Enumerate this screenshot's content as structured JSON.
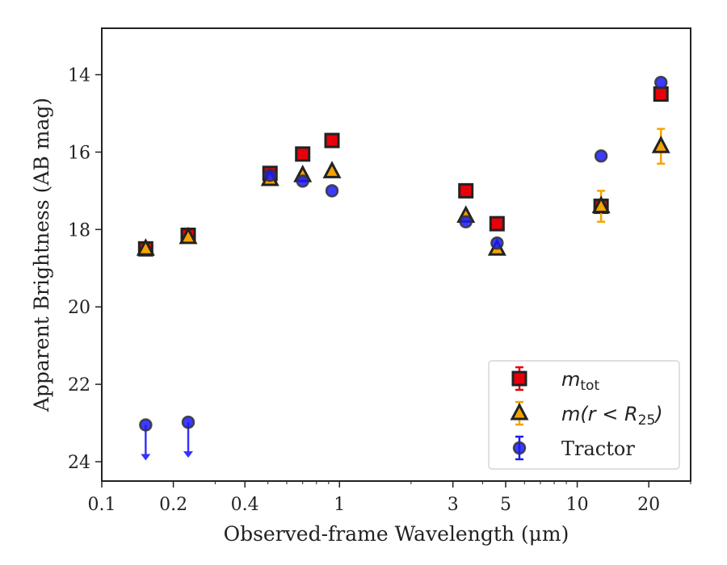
{
  "chart_data": {
    "type": "scatter",
    "xlabel": "Observed-frame Wavelength (μm)",
    "ylabel": "Apparent Brightness (AB mag)",
    "xscale": "log",
    "xlim": [
      0.1,
      30
    ],
    "ylim": [
      24.5,
      12.8
    ],
    "y_inverted": true,
    "xticks": [
      0.1,
      0.2,
      0.4,
      1,
      3,
      5,
      10,
      20
    ],
    "xtick_labels": [
      "0.1",
      "0.2",
      "0.4",
      "1",
      "3",
      "5",
      "10",
      "20"
    ],
    "yticks": [
      14,
      16,
      18,
      20,
      22,
      24
    ],
    "ytick_labels": [
      "14",
      "16",
      "18",
      "20",
      "22",
      "24"
    ],
    "legend_position": "lower right",
    "series": [
      {
        "name": "m_tot",
        "legend_label": "m",
        "legend_sub": "tot",
        "marker": "square",
        "color": "#e8000b",
        "edge_color": "#222222",
        "points": [
          {
            "x": 0.153,
            "y": 18.5
          },
          {
            "x": 0.231,
            "y": 18.15
          },
          {
            "x": 0.51,
            "y": 16.55
          },
          {
            "x": 0.7,
            "y": 16.05
          },
          {
            "x": 0.93,
            "y": 15.7
          },
          {
            "x": 3.4,
            "y": 17.0
          },
          {
            "x": 4.6,
            "y": 17.85
          },
          {
            "x": 12.6,
            "y": 17.4
          },
          {
            "x": 22.5,
            "y": 14.5
          }
        ]
      },
      {
        "name": "m(r < R25)",
        "legend_label": "m(r < R",
        "legend_sub": "25",
        "legend_suffix": ")",
        "marker": "triangle",
        "color": "#f5a300",
        "edge_color": "#222222",
        "points": [
          {
            "x": 0.153,
            "y": 18.5
          },
          {
            "x": 0.231,
            "y": 18.2
          },
          {
            "x": 0.51,
            "y": 16.7
          },
          {
            "x": 0.7,
            "y": 16.6
          },
          {
            "x": 0.93,
            "y": 16.5
          },
          {
            "x": 3.4,
            "y": 17.65
          },
          {
            "x": 4.6,
            "y": 18.5
          },
          {
            "x": 12.6,
            "y": 17.4,
            "err": 0.4
          },
          {
            "x": 22.5,
            "y": 15.85,
            "err": 0.45
          }
        ]
      },
      {
        "name": "Tractor",
        "legend_label": "Tractor",
        "marker": "circle",
        "color": "#1a1aff",
        "edge_color": "#333333",
        "points": [
          {
            "x": 0.153,
            "y": 23.05,
            "upper_limit": true
          },
          {
            "x": 0.231,
            "y": 22.98,
            "upper_limit": true
          },
          {
            "x": 0.51,
            "y": 16.6
          },
          {
            "x": 0.7,
            "y": 16.75
          },
          {
            "x": 0.93,
            "y": 17.0
          },
          {
            "x": 3.4,
            "y": 17.8
          },
          {
            "x": 4.6,
            "y": 18.35
          },
          {
            "x": 12.6,
            "y": 16.1
          },
          {
            "x": 22.5,
            "y": 14.2
          }
        ]
      }
    ]
  }
}
